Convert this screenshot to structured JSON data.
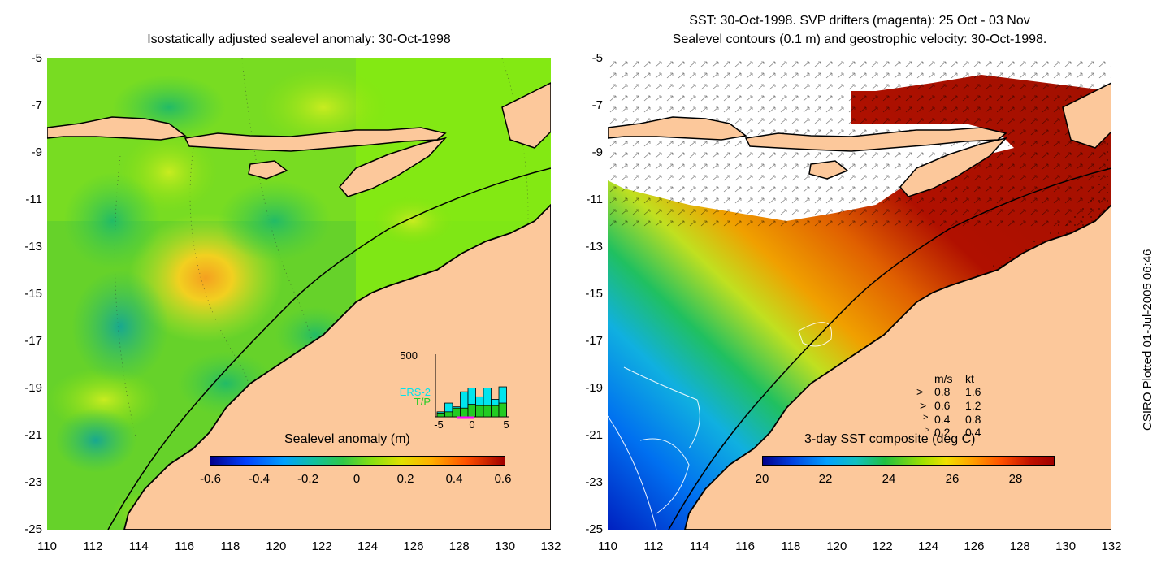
{
  "left_panel": {
    "title": "Isostatically adjusted sealevel anomaly: 30-Oct-1998",
    "colorbar": {
      "label": "Sealevel anomaly (m)",
      "ticks": [
        "-0.6",
        "-0.4",
        "-0.2",
        "0",
        "0.2",
        "0.4",
        "0.6"
      ],
      "range": [
        -0.6,
        0.6
      ]
    },
    "inset": {
      "ymax_label": "500",
      "series_labels": [
        "ERS-2",
        "T/P"
      ],
      "x_ticks": [
        "-5",
        "0",
        "5"
      ],
      "ers2_values": [
        40,
        110,
        80,
        200,
        230,
        160,
        230,
        140,
        240
      ],
      "tp_values": [
        30,
        40,
        70,
        70,
        100,
        90,
        90,
        90,
        110
      ],
      "colors": {
        "ers2": "#00e5ee",
        "tp": "#22cc22",
        "marker": "#ff00ff"
      }
    }
  },
  "right_panel": {
    "title_line1": "SST: 30-Oct-1998. SVP drifters (magenta): 25 Oct - 03 Nov",
    "title_line2": "Sealevel contours (0.1 m) and geostrophic velocity: 30-Oct-1998.",
    "colorbar": {
      "label": "3-day SST composite (deg C)",
      "ticks": [
        "20",
        "22",
        "24",
        "26",
        "28"
      ],
      "range": [
        20,
        29.5
      ]
    },
    "velocity_legend": {
      "header_ms": "m/s",
      "header_kt": "kt",
      "rows": [
        {
          "ms": "0.8",
          "kt": "1.6"
        },
        {
          "ms": "0.6",
          "kt": "1.2"
        },
        {
          "ms": "0.4",
          "kt": "0.8"
        },
        {
          "ms": "0.2",
          "kt": "0.4"
        }
      ]
    }
  },
  "axes": {
    "y_ticks": [
      "-5",
      "-7",
      "-9",
      "-11",
      "-13",
      "-15",
      "-17",
      "-19",
      "-21",
      "-23",
      "-25"
    ],
    "x_ticks": [
      "110",
      "112",
      "114",
      "116",
      "118",
      "120",
      "122",
      "124",
      "126",
      "128",
      "130",
      "132"
    ],
    "lat_range": [
      -25,
      -5
    ],
    "lon_range": [
      110,
      132
    ]
  },
  "stamp": "CSIRO Plotted 01-Jul-2005 06:46",
  "colors": {
    "land": "#fcc89b",
    "no_data": "#ffffff",
    "coast": "#000000"
  }
}
